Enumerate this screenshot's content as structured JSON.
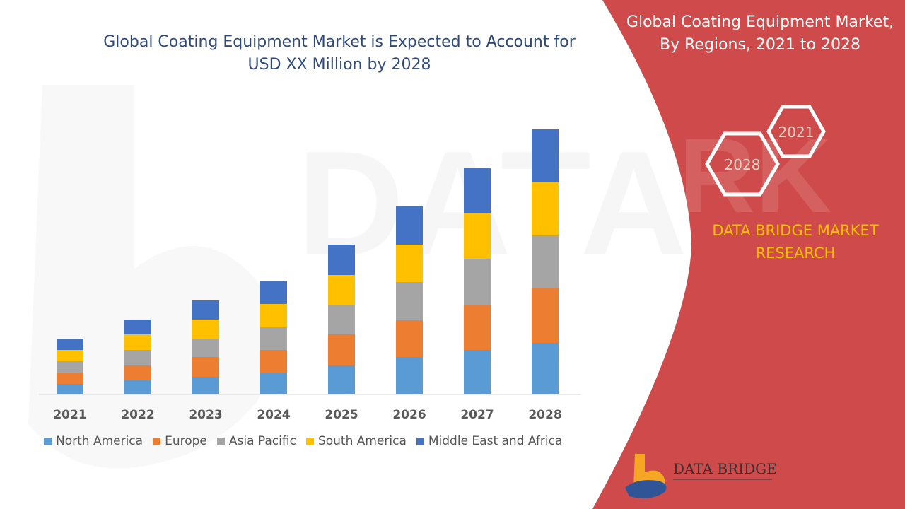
{
  "chart_data": {
    "type": "bar",
    "stacked": true,
    "title": "Global Coating Equipment Market is Expected to Account for USD XX Million by 2028",
    "categories": [
      "2021",
      "2022",
      "2023",
      "2024",
      "2025",
      "2026",
      "2027",
      "2028"
    ],
    "series": [
      {
        "name": "North America",
        "color": "#5b9bd5",
        "values": [
          15,
          20,
          25,
          31,
          41,
          53,
          63,
          73
        ]
      },
      {
        "name": "Europe",
        "color": "#ed7d31",
        "values": [
          16,
          21,
          28,
          32,
          44,
          52,
          63,
          77
        ]
      },
      {
        "name": "Asia Pacific",
        "color": "#a5a5a5",
        "values": [
          16,
          22,
          26,
          32,
          41,
          54,
          66,
          75
        ]
      },
      {
        "name": "South America",
        "color": "#ffc000",
        "values": [
          16,
          22,
          27,
          33,
          43,
          53,
          64,
          75
        ]
      },
      {
        "name": "Middle East and Africa",
        "color": "#4472c4",
        "values": [
          16,
          21,
          27,
          33,
          43,
          54,
          64,
          75
        ]
      }
    ],
    "grid": false,
    "legend_position": "bottom"
  },
  "panel": {
    "title": "Global Coating Equipment Market, By Regions, 2021 to 2028",
    "hex_left_label": "2028",
    "hex_right_label": "2021",
    "brand_line1": "DATA BRIDGE MARKET",
    "brand_line2": "RESEARCH",
    "background_color": "#cf4a4a"
  },
  "logo": {
    "text_line1": "DATA BRIDGE"
  }
}
